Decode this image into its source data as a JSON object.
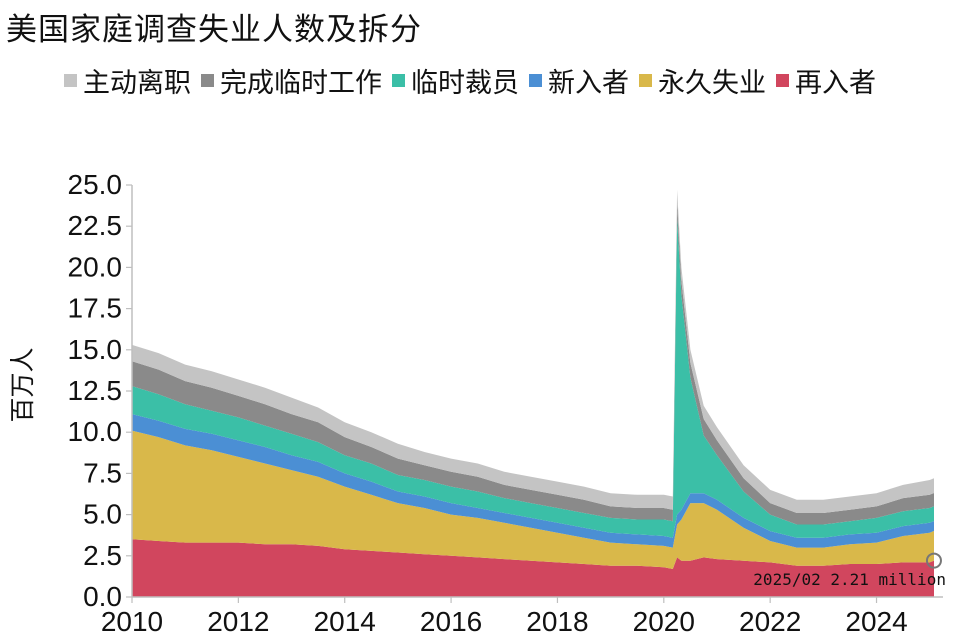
{
  "chart_data": {
    "type": "area",
    "stacked": true,
    "title": "美国家庭调查失业人数及拆分",
    "ylabel": "百万人",
    "xlabel": "",
    "ylim": [
      0,
      25
    ],
    "yticks": [
      "0.0",
      "2.5",
      "5.0",
      "7.5",
      "10.0",
      "12.5",
      "15.0",
      "17.5",
      "20.0",
      "22.5",
      "25.0"
    ],
    "xlim": [
      2010,
      2025.25
    ],
    "xticks": [
      "2010",
      "2012",
      "2014",
      "2016",
      "2018",
      "2020",
      "2022",
      "2024"
    ],
    "legend_position": "top",
    "x": [
      2010.0,
      2010.5,
      2011.0,
      2011.5,
      2012.0,
      2012.5,
      2013.0,
      2013.5,
      2014.0,
      2014.5,
      2015.0,
      2015.5,
      2016.0,
      2016.5,
      2017.0,
      2017.5,
      2018.0,
      2018.5,
      2019.0,
      2019.5,
      2020.0,
      2020.17,
      2020.25,
      2020.33,
      2020.5,
      2020.75,
      2021.0,
      2021.5,
      2022.0,
      2022.5,
      2023.0,
      2023.5,
      2024.0,
      2024.5,
      2025.0,
      2025.08
    ],
    "series": [
      {
        "name": "再入者",
        "color": "#d1465e",
        "values": [
          3.5,
          3.4,
          3.3,
          3.3,
          3.3,
          3.2,
          3.2,
          3.1,
          2.9,
          2.8,
          2.7,
          2.6,
          2.5,
          2.4,
          2.3,
          2.2,
          2.1,
          2.0,
          1.9,
          1.9,
          1.8,
          1.7,
          2.4,
          2.2,
          2.2,
          2.4,
          2.3,
          2.2,
          2.1,
          1.9,
          1.9,
          2.0,
          2.0,
          2.1,
          2.1,
          2.21
        ]
      },
      {
        "name": "永久失业",
        "color": "#d9b84a",
        "values": [
          6.6,
          6.3,
          5.9,
          5.6,
          5.2,
          4.9,
          4.5,
          4.2,
          3.8,
          3.4,
          3.0,
          2.8,
          2.5,
          2.4,
          2.2,
          2.0,
          1.8,
          1.6,
          1.4,
          1.3,
          1.3,
          1.3,
          2.0,
          2.5,
          3.5,
          3.3,
          3.0,
          2.0,
          1.3,
          1.1,
          1.1,
          1.2,
          1.3,
          1.6,
          1.8,
          1.8
        ]
      },
      {
        "name": "新入者",
        "color": "#4b8fd4",
        "values": [
          1.0,
          1.0,
          1.0,
          1.0,
          1.0,
          1.0,
          0.9,
          0.9,
          0.8,
          0.8,
          0.7,
          0.7,
          0.7,
          0.6,
          0.6,
          0.6,
          0.6,
          0.6,
          0.6,
          0.6,
          0.6,
          0.6,
          0.6,
          0.6,
          0.6,
          0.6,
          0.6,
          0.6,
          0.6,
          0.6,
          0.6,
          0.6,
          0.6,
          0.6,
          0.6,
          0.6
        ]
      },
      {
        "name": "临时裁员",
        "color": "#3bbfa7",
        "values": [
          1.7,
          1.6,
          1.5,
          1.4,
          1.4,
          1.3,
          1.3,
          1.2,
          1.1,
          1.1,
          1.0,
          1.0,
          1.0,
          1.0,
          0.9,
          0.9,
          0.9,
          0.9,
          0.9,
          0.9,
          1.0,
          1.0,
          18.0,
          13.0,
          7.0,
          3.5,
          2.7,
          1.6,
          1.0,
          0.8,
          0.8,
          0.8,
          0.9,
          0.9,
          0.9,
          0.9
        ]
      },
      {
        "name": "完成临时工作",
        "color": "#8a8a8a",
        "values": [
          1.5,
          1.5,
          1.4,
          1.4,
          1.3,
          1.3,
          1.2,
          1.2,
          1.1,
          1.0,
          1.0,
          0.9,
          0.9,
          0.9,
          0.8,
          0.8,
          0.8,
          0.8,
          0.7,
          0.7,
          0.7,
          0.7,
          0.9,
          0.9,
          0.9,
          1.0,
          0.9,
          0.8,
          0.7,
          0.7,
          0.7,
          0.7,
          0.7,
          0.8,
          0.8,
          0.8
        ]
      },
      {
        "name": "主动离职",
        "color": "#c4c4c4",
        "values": [
          1.0,
          1.0,
          1.0,
          1.0,
          1.0,
          1.0,
          1.0,
          0.9,
          0.9,
          0.9,
          0.9,
          0.8,
          0.8,
          0.8,
          0.8,
          0.8,
          0.8,
          0.8,
          0.8,
          0.8,
          0.8,
          0.8,
          0.8,
          0.8,
          0.8,
          0.8,
          0.8,
          0.8,
          0.8,
          0.8,
          0.8,
          0.8,
          0.8,
          0.8,
          0.9,
          0.9
        ]
      }
    ],
    "legend_order": [
      "主动离职",
      "完成临时工作",
      "临时裁员",
      "新入者",
      "永久失业",
      "再入者"
    ],
    "annotation": {
      "text": "2025/02 2.21 million",
      "x": 2025.08,
      "y": 2.21
    }
  }
}
